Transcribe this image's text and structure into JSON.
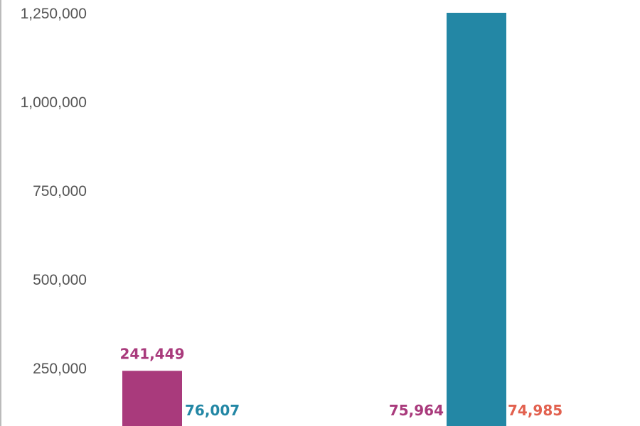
{
  "chart_data": {
    "type": "bar",
    "title": "",
    "xlabel": "",
    "ylabel": "",
    "ylim": [
      0,
      1250000
    ],
    "yticks": [
      250000,
      500000,
      750000,
      1000000,
      1250000
    ],
    "ytick_labels": [
      "250,000",
      "500,000",
      "750,000",
      "1,000,000",
      "1,250,000"
    ],
    "grid": false,
    "colors": {
      "magenta": "#a93a7c",
      "teal": "#2387a5",
      "coral": "#e2614f",
      "purple": "#7b5aa0"
    },
    "bars": [
      {
        "value": 241449,
        "color": "magenta",
        "label": "241,449",
        "label_color": "magenta"
      },
      {
        "value": 76007,
        "color": "teal",
        "label": "76,007",
        "label_color": "teal"
      },
      {
        "value": 75964,
        "color": "magenta",
        "label": "75,964",
        "label_color": "magenta"
      },
      {
        "value": 1250000,
        "color": "teal",
        "label": "",
        "label_color": "teal"
      },
      {
        "value": 74985,
        "color": "coral",
        "label": "74,985",
        "label_color": "coral"
      }
    ]
  }
}
